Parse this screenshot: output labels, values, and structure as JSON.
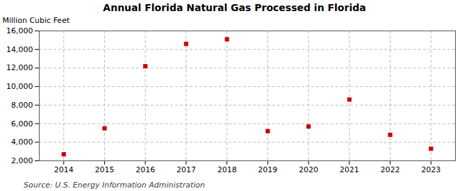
{
  "chart_data": {
    "type": "scatter",
    "title": "Annual Florida Natural Gas Processed in Florida",
    "ylabel": "Million Cubic Feet",
    "source": "Source: U.S. Energy Information Administration",
    "x": [
      2014,
      2015,
      2016,
      2017,
      2018,
      2019,
      2020,
      2021,
      2022,
      2023
    ],
    "values": [
      2700,
      5500,
      12200,
      14600,
      15100,
      5200,
      5700,
      8600,
      4800,
      3300
    ],
    "color": "#cc0000",
    "marker": "square",
    "grid": true,
    "xlim": [
      2013.4,
      2023.6
    ],
    "xticks": [
      2014,
      2015,
      2016,
      2017,
      2018,
      2019,
      2020,
      2021,
      2022,
      2023
    ],
    "ylim": [
      2000,
      16000
    ],
    "yticks": [
      {
        "value": 2000,
        "label": "2,000"
      },
      {
        "value": 4000,
        "label": "4,000"
      },
      {
        "value": 6000,
        "label": "6,000"
      },
      {
        "value": 8000,
        "label": "8,000"
      },
      {
        "value": 10000,
        "label": "10,000"
      },
      {
        "value": 12000,
        "label": "12,000"
      },
      {
        "value": 14000,
        "label": "14,000"
      },
      {
        "value": 16000,
        "label": "16,000"
      }
    ]
  }
}
